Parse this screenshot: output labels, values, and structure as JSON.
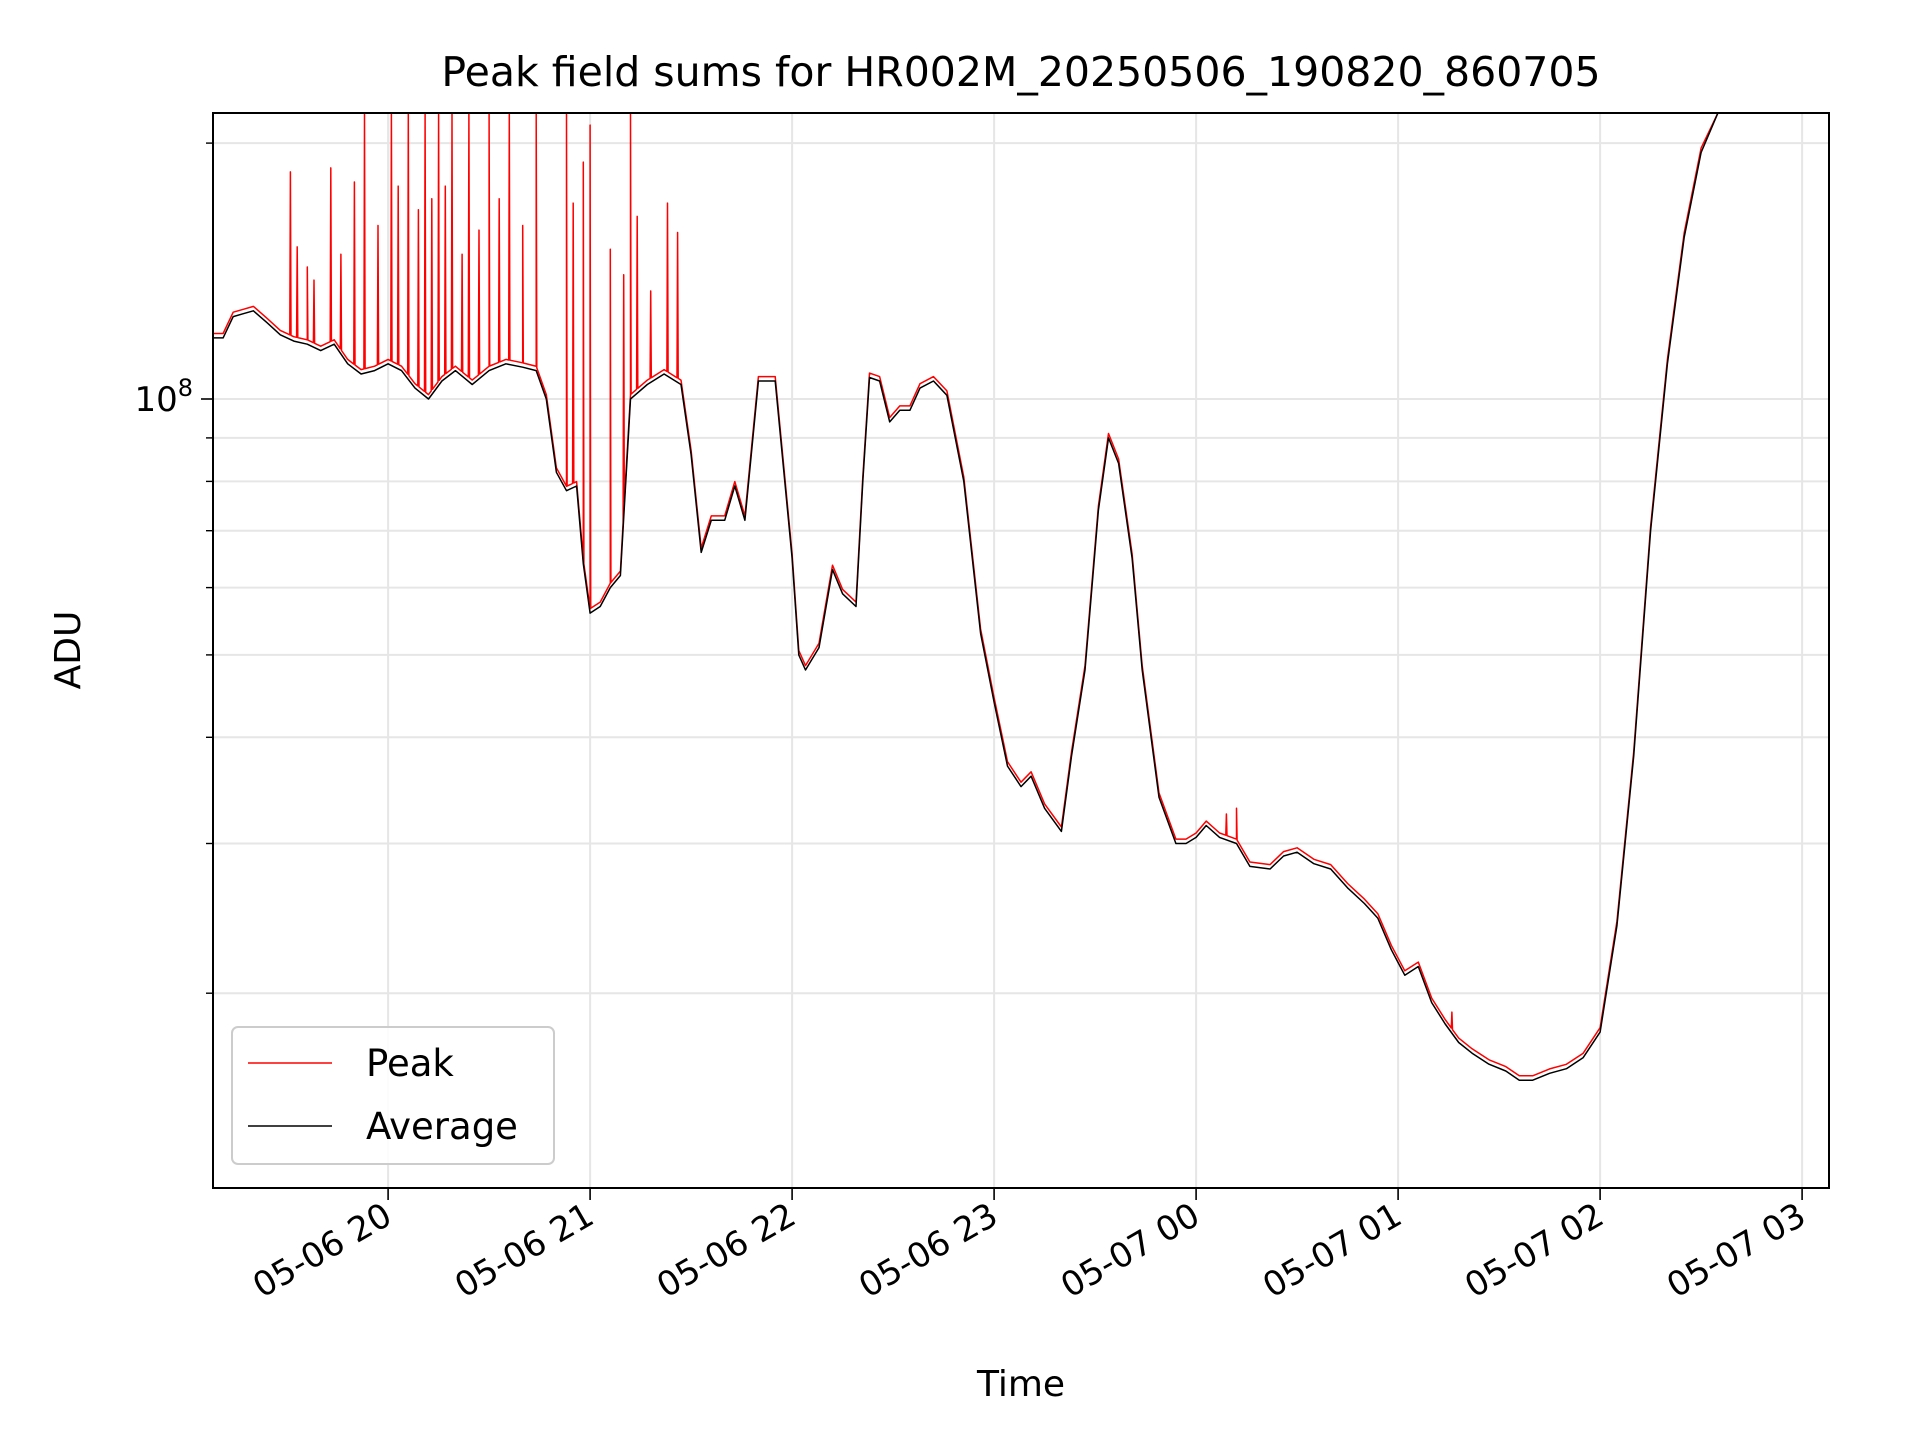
{
  "chart_data": {
    "type": "line",
    "title": "Peak field sums for HR002M_20250506_190820_860705",
    "xlabel": "Time",
    "ylabel": "ADU",
    "y_scale": "log",
    "ylim": [
      11800000,
      217000000
    ],
    "xlim": [
      "05-06 19:08:00",
      "05-07 03:08:00"
    ],
    "grid": true,
    "legend_position": "lower-left",
    "y_ticks": [
      {
        "value": 100000000,
        "base": "10",
        "exp": "8"
      }
    ],
    "x_ticks": [
      {
        "time": "05-06 20:00:00",
        "label": "05-06 20"
      },
      {
        "time": "05-06 21:00:00",
        "label": "05-06 21"
      },
      {
        "time": "05-06 22:00:00",
        "label": "05-06 22"
      },
      {
        "time": "05-06 23:00:00",
        "label": "05-06 23"
      },
      {
        "time": "05-07 00:00:00",
        "label": "05-07 00"
      },
      {
        "time": "05-07 01:00:00",
        "label": "05-07 01"
      },
      {
        "time": "05-07 02:00:00",
        "label": "05-07 02"
      },
      {
        "time": "05-07 03:00:00",
        "label": "05-07 03"
      }
    ],
    "series": [
      {
        "name": "Average",
        "color": "#000000",
        "x": [
          "05-06 19:08:00",
          "05-06 19:11:00",
          "05-06 19:14:00",
          "05-06 19:17:00",
          "05-06 19:20:00",
          "05-06 19:24:00",
          "05-06 19:28:00",
          "05-06 19:32:00",
          "05-06 19:36:00",
          "05-06 19:40:00",
          "05-06 19:44:00",
          "05-06 19:48:00",
          "05-06 19:52:00",
          "05-06 19:56:00",
          "05-06 20:00:00",
          "05-06 20:04:00",
          "05-06 20:08:00",
          "05-06 20:12:00",
          "05-06 20:16:00",
          "05-06 20:20:00",
          "05-06 20:25:00",
          "05-06 20:30:00",
          "05-06 20:35:00",
          "05-06 20:40:00",
          "05-06 20:44:00",
          "05-06 20:47:00",
          "05-06 20:50:00",
          "05-06 20:53:00",
          "05-06 20:56:00",
          "05-06 20:58:00",
          "05-06 21:00:00",
          "05-06 21:03:00",
          "05-06 21:06:00",
          "05-06 21:09:00",
          "05-06 21:12:00",
          "05-06 21:17:00",
          "05-06 21:22:00",
          "05-06 21:27:00",
          "05-06 21:30:00",
          "05-06 21:33:00",
          "05-06 21:36:00",
          "05-06 21:40:00",
          "05-06 21:43:00",
          "05-06 21:46:00",
          "05-06 21:50:00",
          "05-06 21:55:00",
          "05-06 22:00:00",
          "05-06 22:02:00",
          "05-06 22:04:00",
          "05-06 22:08:00",
          "05-06 22:12:00",
          "05-06 22:15:00",
          "05-06 22:19:00",
          "05-06 22:21:00",
          "05-06 22:23:00",
          "05-06 22:26:00",
          "05-06 22:29:00",
          "05-06 22:32:00",
          "05-06 22:35:00",
          "05-06 22:38:00",
          "05-06 22:42:00",
          "05-06 22:46:00",
          "05-06 22:51:00",
          "05-06 22:56:00",
          "05-06 23:00:00",
          "05-06 23:04:00",
          "05-06 23:08:00",
          "05-06 23:11:00",
          "05-06 23:15:00",
          "05-06 23:20:00",
          "05-06 23:23:00",
          "05-06 23:27:00",
          "05-06 23:31:00",
          "05-06 23:34:00",
          "05-06 23:37:00",
          "05-06 23:41:00",
          "05-06 23:44:00",
          "05-06 23:49:00",
          "05-06 23:54:00",
          "05-06 23:57:00",
          "05-07 00:00:00",
          "05-07 00:03:00",
          "05-07 00:07:00",
          "05-07 00:12:00",
          "05-07 00:16:00",
          "05-07 00:22:00",
          "05-07 00:26:00",
          "05-07 00:30:00",
          "05-07 00:35:00",
          "05-07 00:40:00",
          "05-07 00:45:00",
          "05-07 00:50:00",
          "05-07 00:54:00",
          "05-07 00:58:00",
          "05-07 01:02:00",
          "05-07 01:06:00",
          "05-07 01:10:00",
          "05-07 01:14:00",
          "05-07 01:18:00",
          "05-07 01:22:00",
          "05-07 01:27:00",
          "05-07 01:32:00",
          "05-07 01:36:00",
          "05-07 01:40:00",
          "05-07 01:45:00",
          "05-07 01:50:00",
          "05-07 01:55:00",
          "05-07 02:00:00",
          "05-07 02:05:00",
          "05-07 02:10:00",
          "05-07 02:15:00",
          "05-07 02:20:00",
          "05-07 02:25:00",
          "05-07 02:30:00",
          "05-07 02:35:00",
          "05-07 02:40:00",
          "05-07 02:45:00",
          "05-07 02:50:00",
          "05-07 02:55:00",
          "05-07 02:58:00",
          "05-07 03:02:00",
          "05-07 03:08:00"
        ],
        "y": [
          118000000,
          118000000,
          125000000,
          126000000,
          127000000,
          123000000,
          119000000,
          117000000,
          116000000,
          114000000,
          116000000,
          110000000,
          107000000,
          108000000,
          110000000,
          108000000,
          103000000,
          100000000,
          105000000,
          108000000,
          104000000,
          108000000,
          110000000,
          109000000,
          108000000,
          100000000,
          82000000,
          78000000,
          79000000,
          64000000,
          56000000,
          57000000,
          60000000,
          62000000,
          100000000,
          104000000,
          107000000,
          104000000,
          86000000,
          66000000,
          72000000,
          72000000,
          79000000,
          72000000,
          105000000,
          105000000,
          65000000,
          50000000,
          48000000,
          51000000,
          63000000,
          59000000,
          57000000,
          80000000,
          106000000,
          105000000,
          94000000,
          97000000,
          97000000,
          103000000,
          105000000,
          101000000,
          80000000,
          53000000,
          44000000,
          37000000,
          35000000,
          36000000,
          33000000,
          31000000,
          38000000,
          48000000,
          74000000,
          90000000,
          84000000,
          65000000,
          48000000,
          34000000,
          30000000,
          30000000,
          30500000,
          31500000,
          30500000,
          30000000,
          28200000,
          28000000,
          29000000,
          29300000,
          28400000,
          28000000,
          26600000,
          25500000,
          24500000,
          22500000,
          21000000,
          21500000,
          19500000,
          18400000,
          17500000,
          17000000,
          16500000,
          16200000,
          15800000,
          15800000,
          16100000,
          16300000,
          16800000,
          18000000,
          24000000,
          38000000,
          70000000,
          110000000,
          155000000,
          195000000,
          217000000,
          217000000,
          217000000,
          217000000,
          217000000,
          217000000,
          217000000,
          217000000
        ]
      },
      {
        "name": "Peak",
        "color": "#ff0000",
        "spikes": [
          {
            "x": "05-06 19:31:00",
            "y": 185000000
          },
          {
            "x": "05-06 19:33:00",
            "y": 151000000
          },
          {
            "x": "05-06 19:36:00",
            "y": 143000000
          },
          {
            "x": "05-06 19:38:00",
            "y": 138000000
          },
          {
            "x": "05-06 19:43:00",
            "y": 187000000
          },
          {
            "x": "05-06 19:46:00",
            "y": 148000000
          },
          {
            "x": "05-06 19:50:00",
            "y": 180000000
          },
          {
            "x": "05-06 19:53:00",
            "y": 217000000
          },
          {
            "x": "05-06 19:57:00",
            "y": 160000000
          },
          {
            "x": "05-06 20:01:00",
            "y": 217000000
          },
          {
            "x": "05-06 20:03:00",
            "y": 178000000
          },
          {
            "x": "05-06 20:06:00",
            "y": 217000000
          },
          {
            "x": "05-06 20:09:00",
            "y": 167000000
          },
          {
            "x": "05-06 20:11:00",
            "y": 217000000
          },
          {
            "x": "05-06 20:13:00",
            "y": 172000000
          },
          {
            "x": "05-06 20:15:00",
            "y": 217000000
          },
          {
            "x": "05-06 20:17:00",
            "y": 178000000
          },
          {
            "x": "05-06 20:19:00",
            "y": 217000000
          },
          {
            "x": "05-06 20:22:00",
            "y": 148000000
          },
          {
            "x": "05-06 20:24:00",
            "y": 217000000
          },
          {
            "x": "05-06 20:27:00",
            "y": 158000000
          },
          {
            "x": "05-06 20:30:00",
            "y": 217000000
          },
          {
            "x": "05-06 20:33:00",
            "y": 172000000
          },
          {
            "x": "05-06 20:36:00",
            "y": 217000000
          },
          {
            "x": "05-06 20:40:00",
            "y": 160000000
          },
          {
            "x": "05-06 20:44:00",
            "y": 217000000
          },
          {
            "x": "05-06 20:53:00",
            "y": 217000000
          },
          {
            "x": "05-06 20:55:00",
            "y": 170000000
          },
          {
            "x": "05-06 20:58:00",
            "y": 190000000
          },
          {
            "x": "05-06 21:00:00",
            "y": 210000000
          },
          {
            "x": "05-06 21:06:00",
            "y": 150000000
          },
          {
            "x": "05-06 21:10:00",
            "y": 140000000
          },
          {
            "x": "05-06 21:12:00",
            "y": 217000000
          },
          {
            "x": "05-06 21:14:00",
            "y": 164000000
          },
          {
            "x": "05-06 21:18:00",
            "y": 134000000
          },
          {
            "x": "05-06 21:23:00",
            "y": 170000000
          },
          {
            "x": "05-06 21:26:00",
            "y": 157000000
          },
          {
            "x": "05-07 00:09:00",
            "y": 32500000
          },
          {
            "x": "05-07 00:12:00",
            "y": 33000000
          },
          {
            "x": "05-07 01:16:00",
            "y": 19000000
          }
        ]
      }
    ]
  }
}
